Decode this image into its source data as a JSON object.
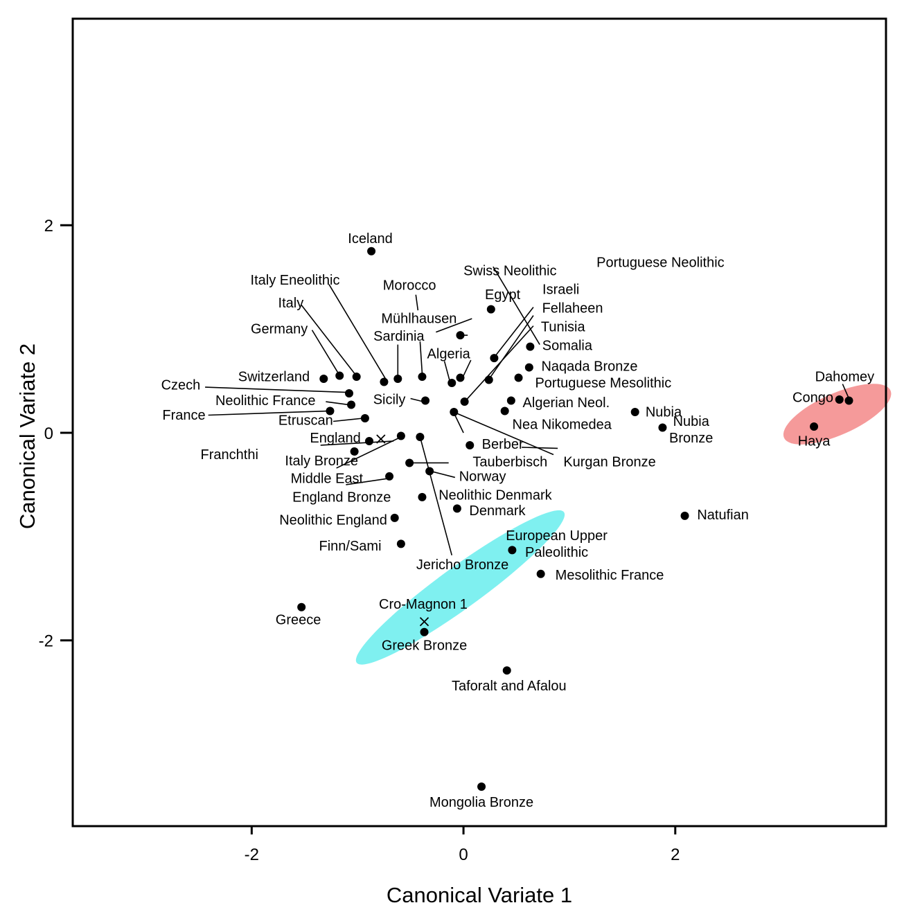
{
  "chart_data": {
    "type": "scatter",
    "title": "",
    "xlabel": "Canonical Variate 1",
    "ylabel": "Canonical Variate 2",
    "xlim": [
      -3.69,
      3.99
    ],
    "ylim": [
      -3.79,
      3.99
    ],
    "xticks": [
      -2,
      0,
      2
    ],
    "yticks": [
      2,
      0,
      -2
    ],
    "grid": false,
    "points": [
      {
        "name": "Iceland",
        "x": -0.87,
        "y": 1.75
      },
      {
        "name": "Swiss Neolithic",
        "x": -0.03,
        "y": 0.94
      },
      {
        "name": "Egypt",
        "x": 0.26,
        "y": 1.19
      },
      {
        "name": "Israeli",
        "x": 0.29,
        "y": 0.72
      },
      {
        "name": "Fellaheen",
        "x": 0.24,
        "y": 0.51
      },
      {
        "name": "Tunisia",
        "x": 0.01,
        "y": 0.3
      },
      {
        "name": "Somalia",
        "x": 0.63,
        "y": 0.83
      },
      {
        "name": "Naqada Bronze",
        "x": 0.62,
        "y": 0.63
      },
      {
        "name": "Portuguese Mesolithic",
        "x": 0.52,
        "y": 0.53
      },
      {
        "name": "Algerian Neol.",
        "x": 0.45,
        "y": 0.31
      },
      {
        "name": "Nea Nikomedea",
        "x": 0.39,
        "y": 0.21
      },
      {
        "name": "Portuguese Neolithic",
        "x": -0.03,
        "y": 0.53
      },
      {
        "name": "Algeria",
        "x": -0.11,
        "y": 0.48
      },
      {
        "name": "Mühlhausen",
        "x": -0.39,
        "y": 0.54
      },
      {
        "name": "Sardinia",
        "x": -0.62,
        "y": 0.52
      },
      {
        "name": "Italy Eneolithic",
        "x": -0.75,
        "y": 0.49
      },
      {
        "name": "Italy",
        "x": -1.01,
        "y": 0.54
      },
      {
        "name": "Germany",
        "x": -1.17,
        "y": 0.55
      },
      {
        "name": "Switzerland",
        "x": -1.32,
        "y": 0.52
      },
      {
        "name": "Czech",
        "x": -1.08,
        "y": 0.38
      },
      {
        "name": "Neolithic France",
        "x": -1.06,
        "y": 0.27
      },
      {
        "name": "France",
        "x": -1.26,
        "y": 0.21
      },
      {
        "name": "Etruscan",
        "x": -0.93,
        "y": 0.14
      },
      {
        "name": "Sicily",
        "x": -0.36,
        "y": 0.31
      },
      {
        "name": "Kurgan Bronze",
        "x": -0.09,
        "y": 0.2
      },
      {
        "name": "England",
        "x": -0.89,
        "y": -0.08
      },
      {
        "name": "Franchthi",
        "x": -1.03,
        "y": -0.18
      },
      {
        "name": "Middle East",
        "x": -0.59,
        "y": -0.03
      },
      {
        "name": "Jericho Bronze",
        "x": -0.41,
        "y": -0.04
      },
      {
        "name": "Berber",
        "x": 0.06,
        "y": -0.12
      },
      {
        "name": "Tauberbisch",
        "x": -0.51,
        "y": -0.29
      },
      {
        "name": "Norway",
        "x": -0.32,
        "y": -0.37
      },
      {
        "name": "England Bronze",
        "x": -0.7,
        "y": -0.42
      },
      {
        "name": "Neolithic Denmark",
        "x": -0.39,
        "y": -0.62
      },
      {
        "name": "Denmark",
        "x": -0.06,
        "y": -0.73
      },
      {
        "name": "Neolithic England",
        "x": -0.65,
        "y": -0.82
      },
      {
        "name": "Finn/Sami",
        "x": -0.59,
        "y": -1.07
      },
      {
        "name": "Paleolithic",
        "x": 0.46,
        "y": -1.13
      },
      {
        "name": "Mesolithic France",
        "x": 0.73,
        "y": -1.36
      },
      {
        "name": "Greece",
        "x": -1.53,
        "y": -1.68
      },
      {
        "name": "Greek Bronze",
        "x": -0.37,
        "y": -1.92
      },
      {
        "name": "Taforalt and Afalou",
        "x": 0.41,
        "y": -2.29
      },
      {
        "name": "Mongolia Bronze",
        "x": 0.17,
        "y": -3.41
      },
      {
        "name": "Natufian",
        "x": 2.09,
        "y": -0.8
      },
      {
        "name": "Nubia",
        "x": 1.62,
        "y": 0.2
      },
      {
        "name": "Nubia Bronze",
        "x": 1.88,
        "y": 0.05
      },
      {
        "name": "Dahomey",
        "x": 3.64,
        "y": 0.31
      },
      {
        "name": "Congo",
        "x": 3.55,
        "y": 0.32
      },
      {
        "name": "Haya",
        "x": 3.31,
        "y": 0.06
      }
    ],
    "x_marks": [
      {
        "x": -0.78,
        "y": -0.06
      },
      {
        "x": -0.37,
        "y": -1.82
      }
    ],
    "labels": [
      {
        "lines": [
          "Iceland"
        ],
        "x": -0.88,
        "y": 1.86
      },
      {
        "lines": [
          "Swiss Neolithic"
        ],
        "x": 0.44,
        "y": 1.55
      },
      {
        "lines": [
          "Portuguese Neolithic"
        ],
        "x": 1.86,
        "y": 1.63
      },
      {
        "lines": [
          "Italy Eneolithic"
        ],
        "x": -1.59,
        "y": 1.46
      },
      {
        "lines": [
          "Morocco"
        ],
        "x": -0.51,
        "y": 1.41
      },
      {
        "lines": [
          "Egypt"
        ],
        "x": 0.37,
        "y": 1.32
      },
      {
        "lines": [
          "Israeli"
        ],
        "x": 0.92,
        "y": 1.37
      },
      {
        "lines": [
          "Italy"
        ],
        "x": -1.63,
        "y": 1.24
      },
      {
        "lines": [
          "Fellaheen"
        ],
        "x": 1.03,
        "y": 1.19
      },
      {
        "lines": [
          "Mühlhausen"
        ],
        "x": -0.42,
        "y": 1.09
      },
      {
        "lines": [
          "Germany"
        ],
        "x": -1.74,
        "y": 0.99
      },
      {
        "lines": [
          "Tunisia"
        ],
        "x": 0.94,
        "y": 1.01
      },
      {
        "lines": [
          "Sardinia"
        ],
        "x": -0.61,
        "y": 0.92
      },
      {
        "lines": [
          "Somalia"
        ],
        "x": 0.98,
        "y": 0.83
      },
      {
        "lines": [
          "Algeria"
        ],
        "x": -0.14,
        "y": 0.75
      },
      {
        "lines": [
          "Switzerland"
        ],
        "x": -1.79,
        "y": 0.53
      },
      {
        "lines": [
          "Naqada Bronze"
        ],
        "x": 1.19,
        "y": 0.63
      },
      {
        "lines": [
          "Czech"
        ],
        "x": -2.67,
        "y": 0.45
      },
      {
        "lines": [
          "Portuguese Mesolithic"
        ],
        "x": 1.32,
        "y": 0.47
      },
      {
        "lines": [
          "Neolithic France"
        ],
        "x": -1.87,
        "y": 0.3
      },
      {
        "lines": [
          "Sicily"
        ],
        "x": -0.7,
        "y": 0.31
      },
      {
        "lines": [
          "Algerian Neol."
        ],
        "x": 0.97,
        "y": 0.28
      },
      {
        "lines": [
          "Nubia"
        ],
        "x": 1.89,
        "y": 0.19
      },
      {
        "lines": [
          "France"
        ],
        "x": -2.64,
        "y": 0.16
      },
      {
        "lines": [
          "Etruscan"
        ],
        "x": -1.49,
        "y": 0.11
      },
      {
        "lines": [
          "Nea Nikomedea"
        ],
        "x": 0.93,
        "y": 0.07
      },
      {
        "lines": [
          "Nubia",
          "Bronze"
        ],
        "x": 2.15,
        "y": 0.02
      },
      {
        "lines": [
          "England"
        ],
        "x": -1.21,
        "y": -0.06
      },
      {
        "lines": [
          "Berber"
        ],
        "x": 0.37,
        "y": -0.12
      },
      {
        "lines": [
          "Franchthi"
        ],
        "x": -2.21,
        "y": -0.22
      },
      {
        "lines": [
          "Italy Bronze"
        ],
        "x": -1.34,
        "y": -0.28
      },
      {
        "lines": [
          "Tauberbisch"
        ],
        "x": 0.44,
        "y": -0.29
      },
      {
        "lines": [
          "Kurgan Bronze"
        ],
        "x": 1.38,
        "y": -0.29
      },
      {
        "lines": [
          "Middle East"
        ],
        "x": -1.29,
        "y": -0.45
      },
      {
        "lines": [
          "Norway"
        ],
        "x": 0.18,
        "y": -0.43
      },
      {
        "lines": [
          "England Bronze"
        ],
        "x": -1.15,
        "y": -0.63
      },
      {
        "lines": [
          "Neolithic Denmark"
        ],
        "x": 0.3,
        "y": -0.61
      },
      {
        "lines": [
          "Denmark"
        ],
        "x": 0.32,
        "y": -0.76
      },
      {
        "lines": [
          "Neolithic England"
        ],
        "x": -1.23,
        "y": -0.85
      },
      {
        "lines": [
          "Natufian"
        ],
        "x": 2.45,
        "y": -0.8
      },
      {
        "lines": [
          "European Upper"
        ],
        "x": 0.88,
        "y": -1.0
      },
      {
        "lines": [
          "Finn/Sami"
        ],
        "x": -1.07,
        "y": -1.1
      },
      {
        "lines": [
          "Paleolithic"
        ],
        "x": 0.88,
        "y": -1.16
      },
      {
        "lines": [
          "Jericho Bronze"
        ],
        "x": -0.01,
        "y": -1.28
      },
      {
        "lines": [
          "Mesolithic France"
        ],
        "x": 1.38,
        "y": -1.38
      },
      {
        "lines": [
          "Cro-Magnon 1"
        ],
        "x": -0.38,
        "y": -1.66
      },
      {
        "lines": [
          "Greece"
        ],
        "x": -1.56,
        "y": -1.81
      },
      {
        "lines": [
          "Greek Bronze"
        ],
        "x": -0.37,
        "y": -2.06
      },
      {
        "lines": [
          "Taforalt and Afalou"
        ],
        "x": 0.43,
        "y": -2.45
      },
      {
        "lines": [
          "Mongolia Bronze"
        ],
        "x": 0.17,
        "y": -3.57
      },
      {
        "lines": [
          "Dahomey"
        ],
        "x": 3.6,
        "y": 0.53
      },
      {
        "lines": [
          "Congo"
        ],
        "x": 3.3,
        "y": 0.33
      },
      {
        "lines": [
          "Haya"
        ],
        "x": 3.31,
        "y": -0.09
      }
    ],
    "leaders": [
      {
        "x1": 0.28,
        "y1": 1.6,
        "x2": 0.72,
        "y2": 0.85,
        "note": "pn-leader-1"
      },
      {
        "x1": 0.08,
        "y1": 1.1,
        "x2": -0.26,
        "y2": 0.97,
        "note": "pn-leader-2"
      },
      {
        "x1": -1.27,
        "y1": 1.43,
        "x2": -0.73,
        "y2": 0.51
      },
      {
        "x1": -0.45,
        "y1": 1.33,
        "x2": -0.43,
        "y2": 1.18
      },
      {
        "x1": -1.53,
        "y1": 1.23,
        "x2": -1.02,
        "y2": 0.56
      },
      {
        "x1": -1.43,
        "y1": 0.99,
        "x2": -1.18,
        "y2": 0.57
      },
      {
        "x1": -0.62,
        "y1": 0.85,
        "x2": -0.62,
        "y2": 0.55
      },
      {
        "x1": -0.41,
        "y1": 0.88,
        "x2": -0.39,
        "y2": 0.57
      },
      {
        "x1": -0.18,
        "y1": 0.69,
        "x2": -0.13,
        "y2": 0.5
      },
      {
        "x1": 0.07,
        "y1": 0.7,
        "x2": 0.0,
        "y2": 0.55
      },
      {
        "x1": -0.06,
        "y1": 0.94,
        "x2": 0.04,
        "y2": 0.94
      },
      {
        "x1": 0.66,
        "y1": 1.21,
        "x2": 0.3,
        "y2": 0.74
      },
      {
        "x1": 0.66,
        "y1": 1.13,
        "x2": 0.25,
        "y2": 0.53
      },
      {
        "x1": 0.66,
        "y1": 1.03,
        "x2": 0.02,
        "y2": 0.31
      },
      {
        "x1": -2.44,
        "y1": 0.44,
        "x2": -1.1,
        "y2": 0.39
      },
      {
        "x1": -1.3,
        "y1": 0.3,
        "x2": -1.08,
        "y2": 0.27
      },
      {
        "x1": -2.41,
        "y1": 0.17,
        "x2": -1.28,
        "y2": 0.21
      },
      {
        "x1": -1.23,
        "y1": 0.11,
        "x2": -0.95,
        "y2": 0.14
      },
      {
        "x1": -0.5,
        "y1": 0.33,
        "x2": -0.38,
        "y2": 0.3
      },
      {
        "x1": -0.07,
        "y1": 0.19,
        "x2": 0.85,
        "y2": -0.21
      },
      {
        "x1": -0.09,
        "y1": 0.19,
        "x2": 0.0,
        "y2": 0.0
      },
      {
        "x1": -1.35,
        "y1": -0.12,
        "x2": -0.66,
        "y2": -0.08
      },
      {
        "x1": -1.2,
        "y1": -0.34,
        "x2": -0.61,
        "y2": -0.05
      },
      {
        "x1": -1.11,
        "y1": -0.5,
        "x2": -0.71,
        "y2": -0.44
      },
      {
        "x1": -0.41,
        "y1": -0.04,
        "x2": -0.11,
        "y2": -1.18
      },
      {
        "x1": -0.31,
        "y1": -0.37,
        "x2": -0.08,
        "y2": -0.43
      },
      {
        "x1": -0.51,
        "y1": -0.29,
        "x2": -0.14,
        "y2": -0.29
      },
      {
        "x1": 0.89,
        "y1": -0.15,
        "x2": 0.55,
        "y2": -0.14
      },
      {
        "x1": 3.58,
        "y1": 0.47,
        "x2": 3.64,
        "y2": 0.33
      }
    ],
    "highlights": [
      {
        "cx": -0.03,
        "cy": -1.49,
        "rx": 1.21,
        "ry": 0.2,
        "angle_deg": 36,
        "color": "#7ff0f0"
      },
      {
        "cx": 3.53,
        "cy": 0.18,
        "rx": 0.55,
        "ry": 0.2,
        "angle_deg": 24,
        "color": "#f59a9a"
      }
    ]
  }
}
